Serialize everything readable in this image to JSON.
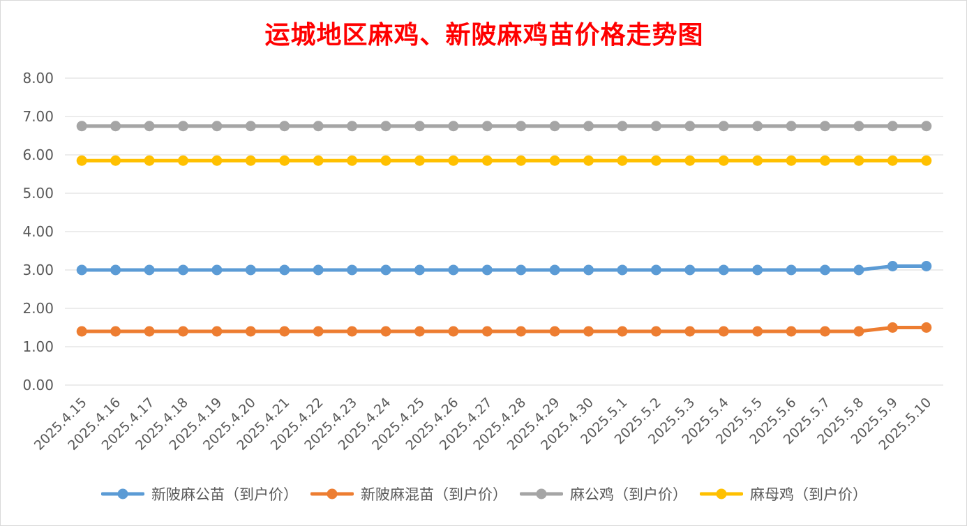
{
  "chart_data": {
    "type": "line",
    "title": "运城地区麻鸡、新陂麻鸡苗价格走势图",
    "xlabel": "",
    "ylabel": "",
    "ylim": [
      0,
      8
    ],
    "yticks": [
      "0.00",
      "1.00",
      "2.00",
      "3.00",
      "4.00",
      "5.00",
      "6.00",
      "7.00",
      "8.00"
    ],
    "grid": true,
    "legend_position": "bottom",
    "categories": [
      "2025.4.15",
      "2025.4.16",
      "2025.4.17",
      "2025.4.18",
      "2025.4.19",
      "2025.4.20",
      "2025.4.21",
      "2025.4.22",
      "2025.4.23",
      "2025.4.24",
      "2025.4.25",
      "2025.4.26",
      "2025.4.27",
      "2025.4.28",
      "2025.4.29",
      "2025.4.30",
      "2025.5.1",
      "2025.5.2",
      "2025.5.3",
      "2025.5.4",
      "2025.5.5",
      "2025.5.6",
      "2025.5.7",
      "2025.5.8",
      "2025.5.9",
      "2025.5.10"
    ],
    "series": [
      {
        "name": "新陂麻公苗（到户价）",
        "color": "#5b9bd5",
        "values": [
          3.0,
          3.0,
          3.0,
          3.0,
          3.0,
          3.0,
          3.0,
          3.0,
          3.0,
          3.0,
          3.0,
          3.0,
          3.0,
          3.0,
          3.0,
          3.0,
          3.0,
          3.0,
          3.0,
          3.0,
          3.0,
          3.0,
          3.0,
          3.0,
          3.1,
          3.1
        ]
      },
      {
        "name": "新陂麻混苗（到户价）",
        "color": "#ed7d31",
        "values": [
          1.4,
          1.4,
          1.4,
          1.4,
          1.4,
          1.4,
          1.4,
          1.4,
          1.4,
          1.4,
          1.4,
          1.4,
          1.4,
          1.4,
          1.4,
          1.4,
          1.4,
          1.4,
          1.4,
          1.4,
          1.4,
          1.4,
          1.4,
          1.4,
          1.5,
          1.5
        ]
      },
      {
        "name": "麻公鸡（到户价）",
        "color": "#a5a5a5",
        "values": [
          6.75,
          6.75,
          6.75,
          6.75,
          6.75,
          6.75,
          6.75,
          6.75,
          6.75,
          6.75,
          6.75,
          6.75,
          6.75,
          6.75,
          6.75,
          6.75,
          6.75,
          6.75,
          6.75,
          6.75,
          6.75,
          6.75,
          6.75,
          6.75,
          6.75,
          6.75
        ]
      },
      {
        "name": "麻母鸡（到户价）",
        "color": "#ffc000",
        "values": [
          5.85,
          5.85,
          5.85,
          5.85,
          5.85,
          5.85,
          5.85,
          5.85,
          5.85,
          5.85,
          5.85,
          5.85,
          5.85,
          5.85,
          5.85,
          5.85,
          5.85,
          5.85,
          5.85,
          5.85,
          5.85,
          5.85,
          5.85,
          5.85,
          5.85,
          5.85
        ]
      }
    ]
  }
}
